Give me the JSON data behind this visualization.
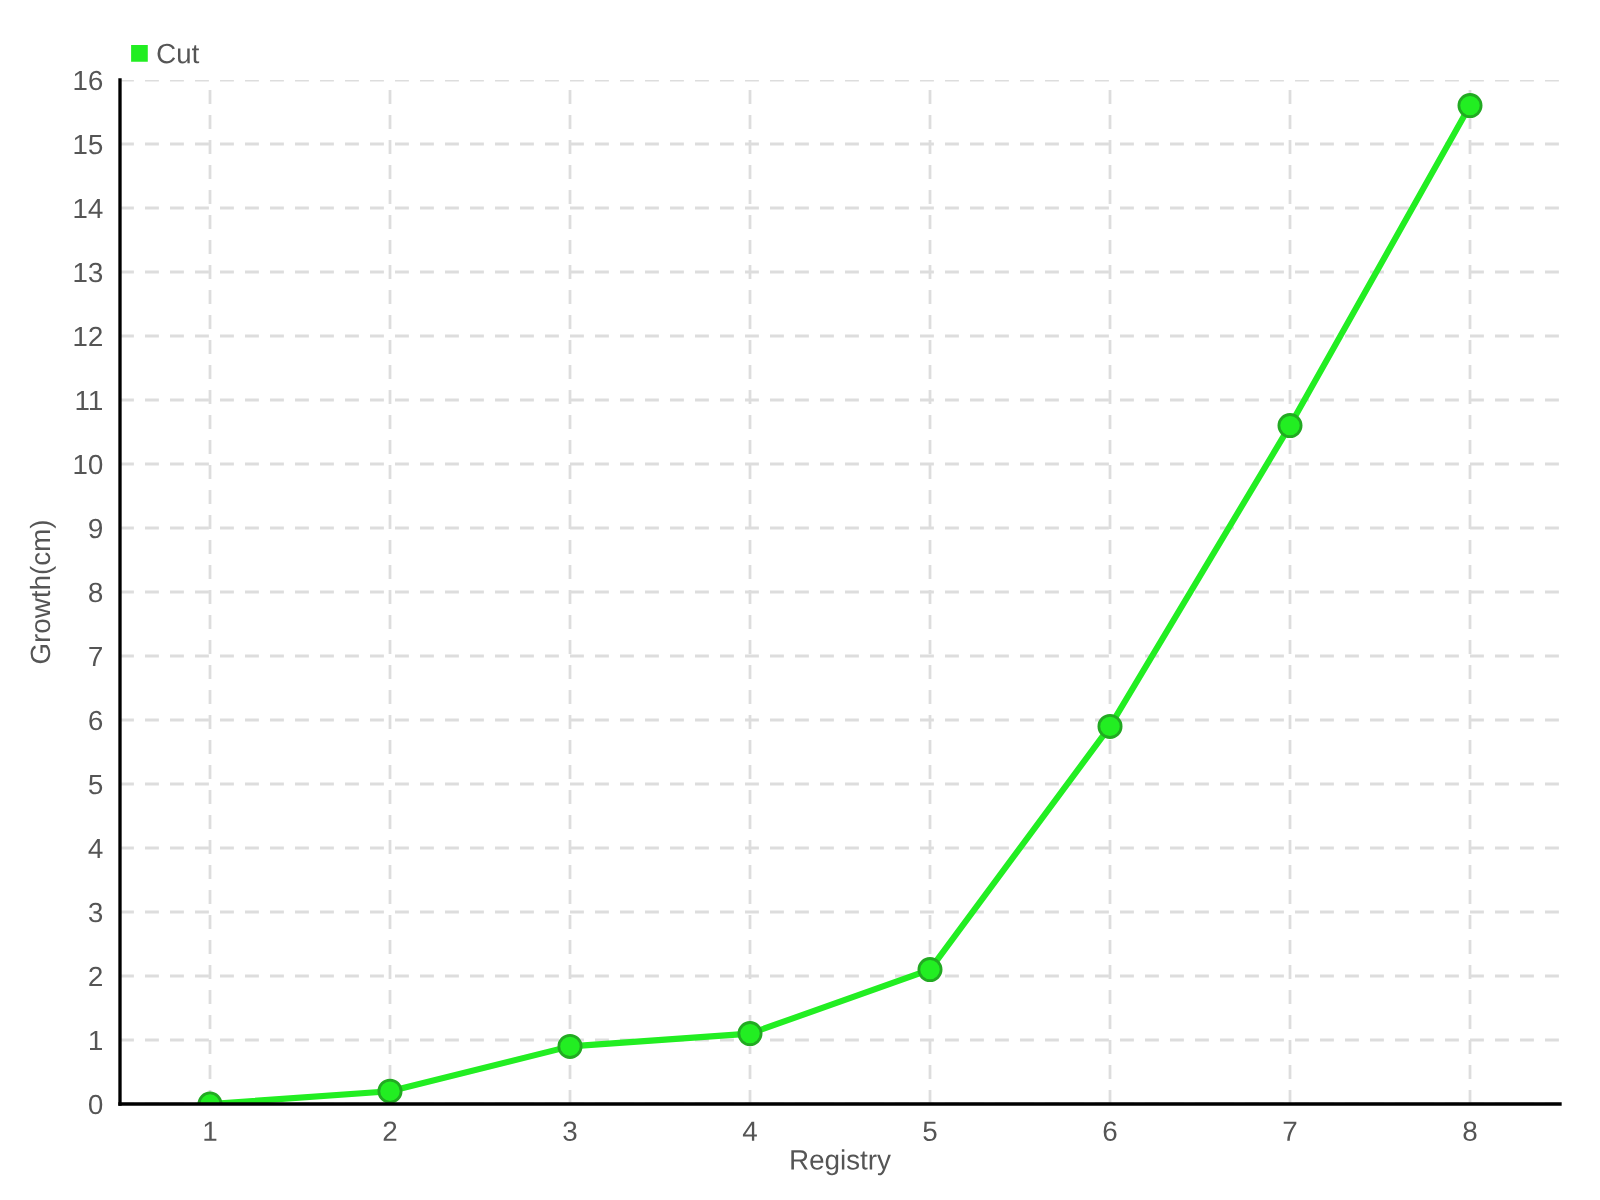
{
  "chart_data": {
    "type": "line",
    "xlabel": "Registry",
    "ylabel": "Growth(cm)",
    "categories": [
      "1",
      "2",
      "3",
      "4",
      "5",
      "6",
      "7",
      "8"
    ],
    "series": [
      {
        "name": "Cut",
        "color": "#22ee22",
        "values": [
          0,
          0.2,
          0.9,
          1.1,
          2.1,
          5.9,
          10.6,
          15.6
        ]
      }
    ],
    "ylim": [
      0,
      16
    ],
    "yticks": [
      0,
      1,
      2,
      3,
      4,
      5,
      6,
      7,
      8,
      9,
      10,
      11,
      12,
      13,
      14,
      15,
      16
    ],
    "grid": true,
    "legend": "top left",
    "marker": "circle",
    "line_style": "solid"
  }
}
